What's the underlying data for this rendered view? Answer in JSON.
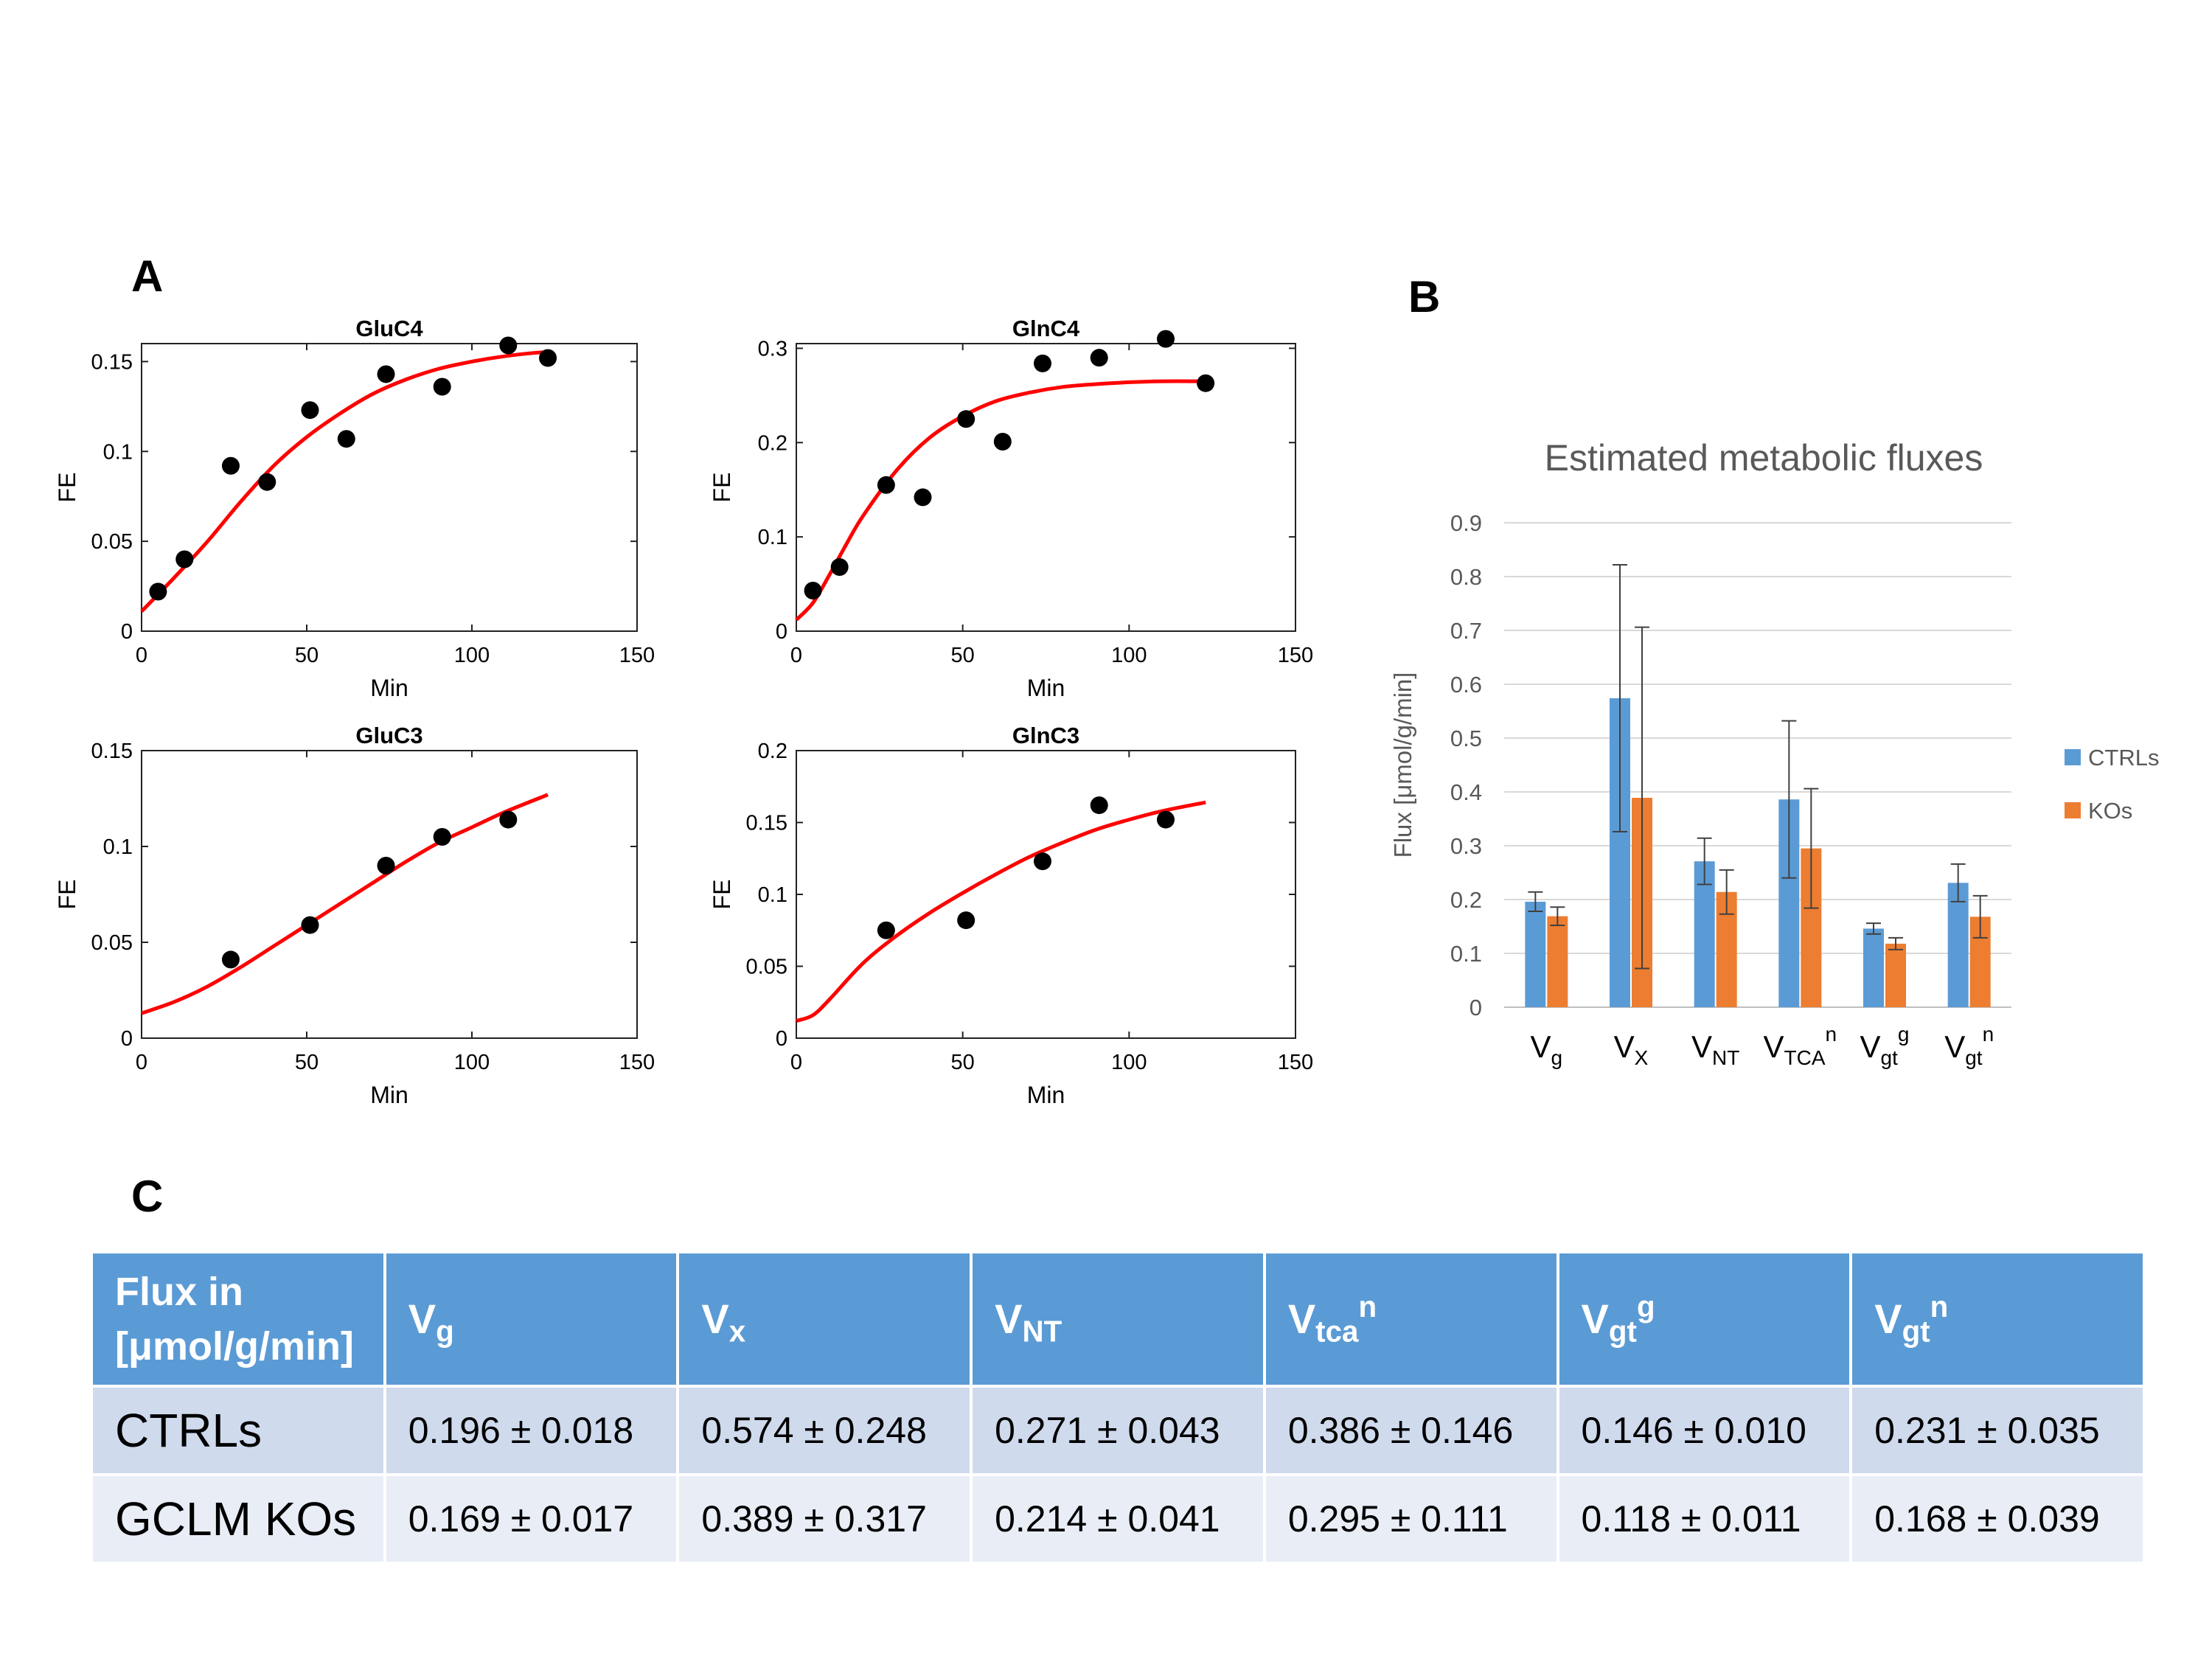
{
  "panels": {
    "a": "A",
    "b": "B",
    "c": "C"
  },
  "chart_data": [
    {
      "type": "scatter",
      "title": "GluC4",
      "xlabel": "Min",
      "ylabel": "FE",
      "xlim": [
        0,
        150
      ],
      "ylim": [
        0,
        0.16
      ],
      "xticks": [
        0,
        50,
        100,
        150
      ],
      "yticks": [
        0,
        0.05,
        0.1,
        0.15
      ],
      "yticklabels": [
        "0",
        "0.05",
        "0.1",
        "0.15"
      ],
      "points": {
        "x": [
          5,
          13,
          27,
          38,
          51,
          62,
          74,
          91,
          111,
          123
        ],
        "y": [
          0.022,
          0.04,
          0.092,
          0.083,
          0.123,
          0.107,
          0.143,
          0.136,
          0.159,
          0.152
        ]
      },
      "fit": {
        "x": [
          0,
          10,
          20,
          30,
          40,
          50,
          60,
          70,
          80,
          90,
          100,
          110,
          120,
          123
        ],
        "y": [
          0.011,
          0.03,
          0.05,
          0.072,
          0.092,
          0.108,
          0.121,
          0.132,
          0.14,
          0.146,
          0.15,
          0.153,
          0.155,
          0.155
        ]
      }
    },
    {
      "type": "scatter",
      "title": "GlnC4",
      "xlabel": "Min",
      "ylabel": "FE",
      "xlim": [
        0,
        150
      ],
      "ylim": [
        0,
        0.305
      ],
      "xticks": [
        0,
        50,
        100,
        150
      ],
      "yticks": [
        0,
        0.1,
        0.2,
        0.3
      ],
      "yticklabels": [
        "0",
        "0.1",
        "0.2",
        "0.3"
      ],
      "points": {
        "x": [
          5,
          13,
          27,
          38,
          51,
          62,
          74,
          91,
          111,
          123
        ],
        "y": [
          0.043,
          0.068,
          0.155,
          0.142,
          0.225,
          0.201,
          0.284,
          0.29,
          0.31,
          0.263
        ]
      },
      "fit": {
        "x": [
          0,
          5,
          10,
          15,
          20,
          30,
          40,
          50,
          60,
          70,
          80,
          90,
          100,
          110,
          123
        ],
        "y": [
          0.012,
          0.03,
          0.06,
          0.092,
          0.122,
          0.17,
          0.205,
          0.228,
          0.244,
          0.253,
          0.259,
          0.262,
          0.264,
          0.265,
          0.265
        ]
      }
    },
    {
      "type": "scatter",
      "title": "GluC3",
      "xlabel": "Min",
      "ylabel": "FE",
      "xlim": [
        0,
        150
      ],
      "ylim": [
        0,
        0.15
      ],
      "xticks": [
        0,
        50,
        100,
        150
      ],
      "yticks": [
        0,
        0.05,
        0.1,
        0.15
      ],
      "yticklabels": [
        "0",
        "0.05",
        "0.1",
        "0.15"
      ],
      "points": {
        "x": [
          27,
          51,
          74,
          91,
          111
        ],
        "y": [
          0.041,
          0.059,
          0.09,
          0.105,
          0.114
        ]
      },
      "fit": {
        "x": [
          0,
          10,
          20,
          30,
          40,
          50,
          60,
          70,
          80,
          90,
          100,
          110,
          123
        ],
        "y": [
          0.013,
          0.019,
          0.027,
          0.037,
          0.048,
          0.059,
          0.07,
          0.081,
          0.092,
          0.102,
          0.11,
          0.118,
          0.127
        ]
      }
    },
    {
      "type": "scatter",
      "title": "GlnC3",
      "xlabel": "Min",
      "ylabel": "FE",
      "xlim": [
        0,
        150
      ],
      "ylim": [
        0,
        0.2
      ],
      "xticks": [
        0,
        50,
        100,
        150
      ],
      "yticks": [
        0,
        0.05,
        0.1,
        0.15,
        0.2
      ],
      "yticklabels": [
        "0",
        "0.05",
        "0.1",
        "0.15",
        "0.2"
      ],
      "points": {
        "x": [
          27,
          51,
          74,
          91,
          111
        ],
        "y": [
          0.075,
          0.082,
          0.123,
          0.162,
          0.152
        ]
      },
      "fit": {
        "x": [
          0,
          5,
          10,
          20,
          30,
          40,
          50,
          60,
          70,
          80,
          90,
          100,
          110,
          123
        ],
        "y": [
          0.012,
          0.016,
          0.027,
          0.052,
          0.071,
          0.087,
          0.101,
          0.114,
          0.126,
          0.136,
          0.145,
          0.152,
          0.158,
          0.164
        ]
      }
    },
    {
      "type": "bar",
      "title": "Estimated metabolic fluxes",
      "xlabel": "",
      "ylabel": "Flux [μmol/g/min]",
      "ylim": [
        0,
        0.9
      ],
      "yticks": [
        0,
        0.1,
        0.2,
        0.3,
        0.4,
        0.5,
        0.6,
        0.7,
        0.8,
        0.9
      ],
      "yticklabels": [
        "0",
        "0.1",
        "0.2",
        "0.3",
        "0.4",
        "0.5",
        "0.6",
        "0.7",
        "0.8",
        "0.9"
      ],
      "grid": true,
      "legend": "right",
      "categories": [
        {
          "base": "V",
          "sub": "g",
          "sup": ""
        },
        {
          "base": "V",
          "sub": "X",
          "sup": ""
        },
        {
          "base": "V",
          "sub": "NT",
          "sup": ""
        },
        {
          "base": "V",
          "sub": "TCA",
          "sup": "n"
        },
        {
          "base": "V",
          "sub": "gt",
          "sup": "g"
        },
        {
          "base": "V",
          "sub": "gt",
          "sup": "n"
        }
      ],
      "series": [
        {
          "name": "CTRLs",
          "color": "#5b9bd5",
          "values": [
            0.196,
            0.574,
            0.271,
            0.386,
            0.146,
            0.231
          ],
          "errors": [
            0.018,
            0.248,
            0.043,
            0.146,
            0.01,
            0.035
          ]
        },
        {
          "name": "KOs",
          "color": "#ed7d31",
          "values": [
            0.169,
            0.389,
            0.214,
            0.295,
            0.118,
            0.168
          ],
          "errors": [
            0.017,
            0.317,
            0.041,
            0.111,
            0.011,
            0.039
          ]
        }
      ]
    }
  ],
  "table": {
    "header_label_line1": "Flux in",
    "header_label_line2": "[μmol/g/min]",
    "columns": [
      {
        "base": "V",
        "sub": "g",
        "sup": ""
      },
      {
        "base": "V",
        "sub": "x",
        "sup": ""
      },
      {
        "base": "V",
        "sub": "NT",
        "sup": ""
      },
      {
        "base": "V",
        "sub": "tca",
        "sup": "n"
      },
      {
        "base": "V",
        "sub": "gt",
        "sup": "g"
      },
      {
        "base": "V",
        "sub": "gt",
        "sup": "n"
      }
    ],
    "rows": [
      {
        "label": "CTRLs",
        "values": [
          "0.196 ± 0.018",
          "0.574 ± 0.248",
          "0.271 ± 0.043",
          "0.386 ± 0.146",
          "0.146 ± 0.010",
          "0.231 ± 0.035"
        ]
      },
      {
        "label": "GCLM KOs",
        "values": [
          "0.169 ± 0.017",
          "0.389 ± 0.317",
          "0.214 ± 0.041",
          "0.295 ± 0.111",
          "0.118 ± 0.011",
          "0.168 ± 0.039"
        ]
      }
    ]
  }
}
